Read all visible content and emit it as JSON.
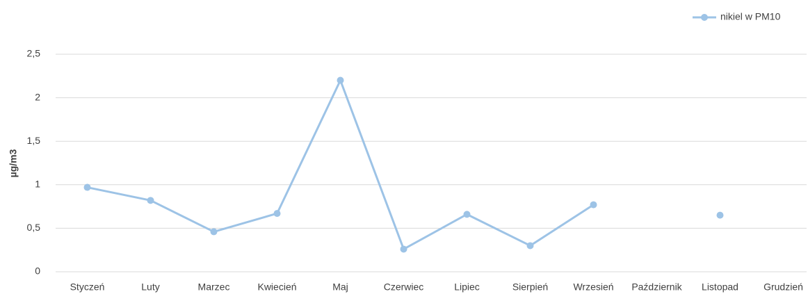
{
  "chart_data": {
    "type": "line",
    "y_label": "µg/m3",
    "categories": [
      "Styczeń",
      "Luty",
      "Marzec",
      "Kwiecień",
      "Maj",
      "Czerwiec",
      "Lipiec",
      "Sierpień",
      "Wrzesień",
      "Październik",
      "Listopad",
      "Grudzień"
    ],
    "series": [
      {
        "name": "nikiel w PM10",
        "color": "#9dc3e6",
        "values": [
          0.97,
          0.82,
          0.46,
          0.67,
          2.2,
          0.26,
          0.66,
          0.3,
          0.77,
          null,
          0.65,
          null
        ]
      }
    ],
    "ylim": [
      0,
      2.5
    ],
    "yticks": [
      0,
      {
        "value": 0.5,
        "label": "0,5"
      },
      1,
      {
        "value": 1.5,
        "label": "1,5"
      },
      2,
      {
        "value": 2.5,
        "label": "2,5"
      }
    ],
    "grid": true,
    "legend": "top-right"
  }
}
